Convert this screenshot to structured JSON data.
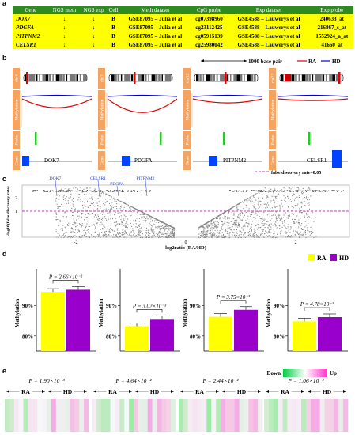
{
  "panel_labels": {
    "a": "a",
    "b": "b",
    "c": "c",
    "d": "d",
    "e": "e"
  },
  "table": {
    "headers": [
      "Gene",
      "NGS meth",
      "NGS exp",
      "Cell",
      "Meth dataset",
      "CpG probe",
      "Exp dataset",
      "Exp probe"
    ],
    "rows": [
      [
        "DOK7",
        "↓",
        "↓",
        "B",
        "GSE87095 – Julia et al",
        "cg07398960",
        "GSE4588 – Lauwerys et al",
        "240633_at"
      ],
      [
        "PDGFA",
        "↓",
        "↓",
        "B",
        "GSE87095 – Julia et al",
        "cg23112425",
        "GSE4588 – Lauwerys et al",
        "216867_s_at"
      ],
      [
        "PITPNM2",
        "↓",
        "↓",
        "B",
        "GSE87095 – Julia et al",
        "cg05915139",
        "GSE4588 – Lauwerys et al",
        "1552924_a_at"
      ],
      [
        "CELSR1",
        "↓",
        "↓",
        "B",
        "GSE87095 – Julia et al",
        "cg25980042",
        "GSE4588 – Lauwerys et al",
        "41660_at"
      ]
    ]
  },
  "panel_b": {
    "scale_label": "1000 base pair",
    "legend": {
      "ra": "RA",
      "hd": "HD"
    },
    "row_labels": {
      "methylation": "Methylation",
      "probe": "Probe",
      "gene": "Gene"
    },
    "columns": [
      {
        "chr": "chr4",
        "gene": "DOK7"
      },
      {
        "chr": "chr7",
        "gene": "PDGFA"
      },
      {
        "chr": "chr12",
        "gene": "PITPNM2"
      },
      {
        "chr": "chr22",
        "gene": "CELSR1"
      }
    ],
    "fdr_legend": "false discovery rate=0.05"
  },
  "panel_c": {
    "labels": [
      "DOK7",
      "CELSR1",
      "PDGFA",
      "PITPNM2"
    ],
    "ylabel": "-log10(false discovery rate)",
    "xlabel": "log2ratio (RA/HD)",
    "yticks": [
      "1",
      "2"
    ],
    "xticks": [
      "-2",
      "0",
      "2"
    ]
  },
  "chart_data": [
    {
      "type": "bar",
      "title": "",
      "categories": [
        "RA",
        "HD"
      ],
      "ylabel": "Methylation",
      "ylim": [
        75,
        100
      ],
      "yticks": [
        "80%",
        "90%"
      ],
      "values": [
        94.5,
        95.2
      ],
      "pvalue": "P = 2.66×10⁻²",
      "colors": [
        "#ffff00",
        "#9900cc"
      ]
    },
    {
      "type": "bar",
      "title": "",
      "categories": [
        "RA",
        "HD"
      ],
      "ylabel": "Methylation",
      "ylim": [
        75,
        100
      ],
      "yticks": [
        "80%",
        "90%"
      ],
      "values": [
        83.2,
        85.6
      ],
      "pvalue": "P = 3.02×10⁻³",
      "colors": [
        "#ffff00",
        "#9900cc"
      ]
    },
    {
      "type": "bar",
      "title": "",
      "categories": [
        "RA",
        "HD"
      ],
      "ylabel": "Methylation",
      "ylim": [
        75,
        100
      ],
      "yticks": [
        "80%",
        "90%"
      ],
      "values": [
        86.3,
        88.6
      ],
      "pvalue": "P = 3.75×10⁻³",
      "colors": [
        "#ffff00",
        "#9900cc"
      ]
    },
    {
      "type": "bar",
      "title": "",
      "categories": [
        "RA",
        "HD"
      ],
      "ylabel": "Methylation",
      "ylim": [
        75,
        100
      ],
      "yticks": [
        "80%",
        "90%"
      ],
      "values": [
        84.8,
        86.2
      ],
      "pvalue": "P = 4.78×10⁻²",
      "colors": [
        "#ffff00",
        "#9900cc"
      ]
    }
  ],
  "panel_d_legend": {
    "ra": "RA",
    "hd": "HD"
  },
  "panel_e": {
    "pvalues": [
      "P = 1.90×10⁻³",
      "P = 4.64×10⁻²",
      "P = 2.44×10⁻²",
      "P = 1.06×10⁻²"
    ],
    "group_ra": "RA",
    "group_hd": "HD",
    "legend_down": "Down",
    "legend_up": "Up"
  }
}
